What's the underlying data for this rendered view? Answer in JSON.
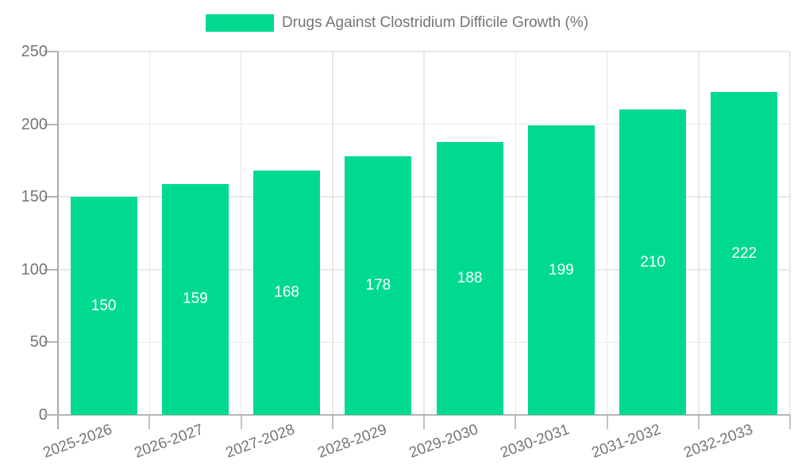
{
  "chart_data": {
    "type": "bar",
    "title": "Drugs Against Clostridium Difficile Growth (%)",
    "legend_label": "Drugs Against Clostridium Difficile Growth (%)",
    "legend_position": "top",
    "categories": [
      "2025-2026",
      "2026-2027",
      "2027-2028",
      "2028-2029",
      "2029-2030",
      "2030-2031",
      "2031-2032",
      "2032-2033"
    ],
    "values": [
      150,
      159,
      168,
      178,
      188,
      199,
      210,
      222
    ],
    "xlabel": "",
    "ylabel": "",
    "ylim": [
      0,
      250
    ],
    "yticks": [
      0,
      50,
      100,
      150,
      200,
      250
    ],
    "grid": true,
    "x_label_rotation_deg": -20,
    "bar_color": "#00D992",
    "value_label_color": "#FFFFFF",
    "axis_text_color": "#757575",
    "grid_color": "#E8E8E8",
    "axis_line_color": "#AAAAAA"
  }
}
